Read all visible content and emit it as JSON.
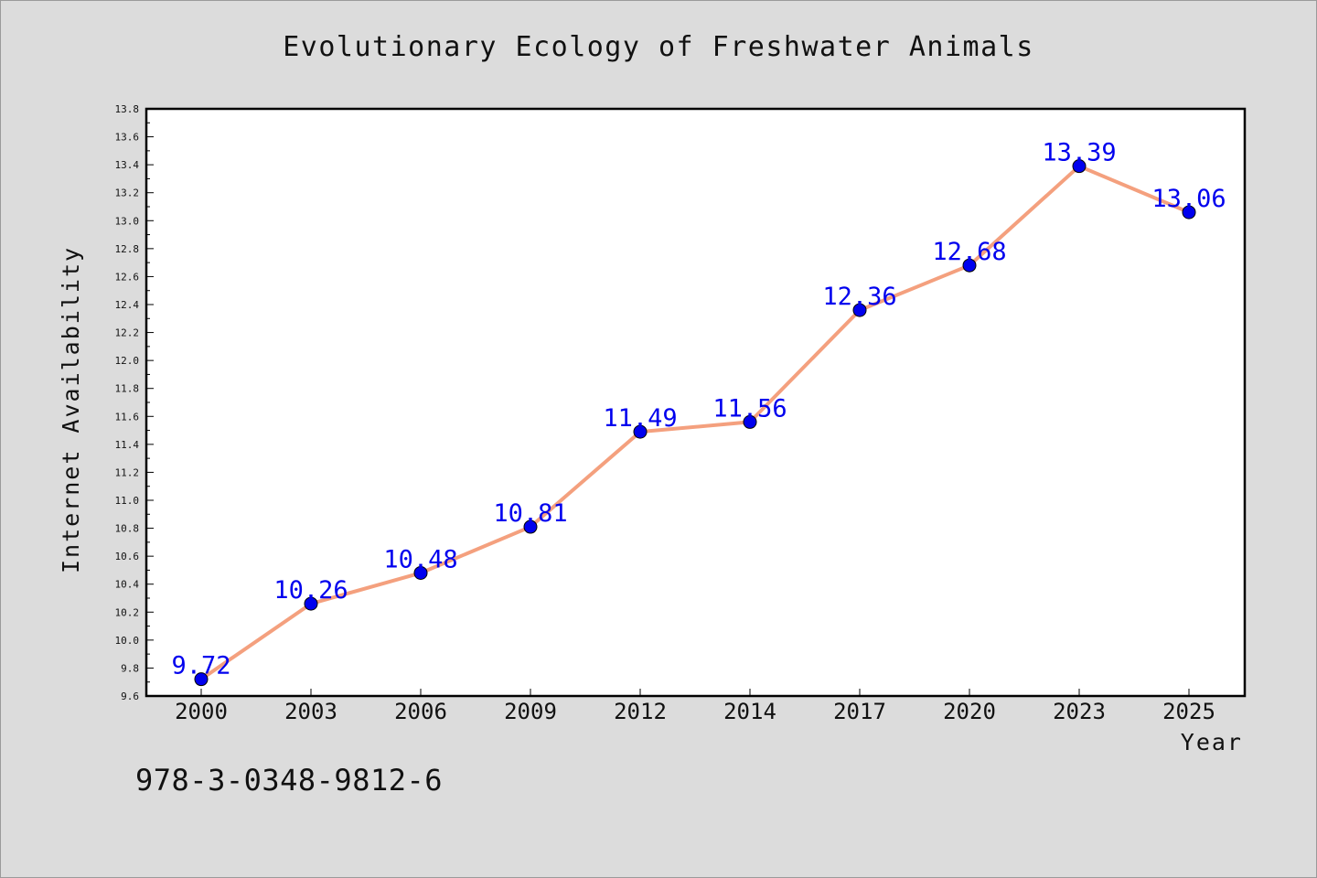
{
  "chart_data": {
    "type": "line",
    "title": "Evolutionary Ecology of Freshwater Animals",
    "xlabel": "Year",
    "ylabel": "Internet Availability",
    "categories": [
      "2000",
      "2003",
      "2006",
      "2009",
      "2012",
      "2014",
      "2017",
      "2020",
      "2023",
      "2025"
    ],
    "series": [
      {
        "values": [
          9.72,
          10.26,
          10.48,
          10.81,
          11.49,
          11.56,
          12.36,
          12.68,
          13.39,
          13.06
        ],
        "line_color": "#f4a07e",
        "marker_color": "#0000ee"
      }
    ],
    "data_labels": [
      "9.72",
      "10.26",
      "10.48",
      "10.81",
      "11.49",
      "11.56",
      "12.36",
      "12.68",
      "13.39",
      "13.06"
    ],
    "label_color": "#0000ee",
    "ylim": [
      9.6,
      13.8
    ],
    "yticks": [
      "9.6",
      "9.8",
      "10.0",
      "10.2",
      "10.4",
      "10.6",
      "10.8",
      "11.0",
      "11.2",
      "11.4",
      "11.6",
      "11.8",
      "12.0",
      "12.2",
      "12.4",
      "12.6",
      "12.8",
      "13.0",
      "13.2",
      "13.4",
      "13.6",
      "13.8"
    ],
    "grid": false,
    "legend": "none"
  },
  "footer": {
    "isbn": "978-3-0348-9812-6"
  },
  "colors": {
    "background": "#dcdcdc",
    "plot_area": "#ffffff"
  }
}
